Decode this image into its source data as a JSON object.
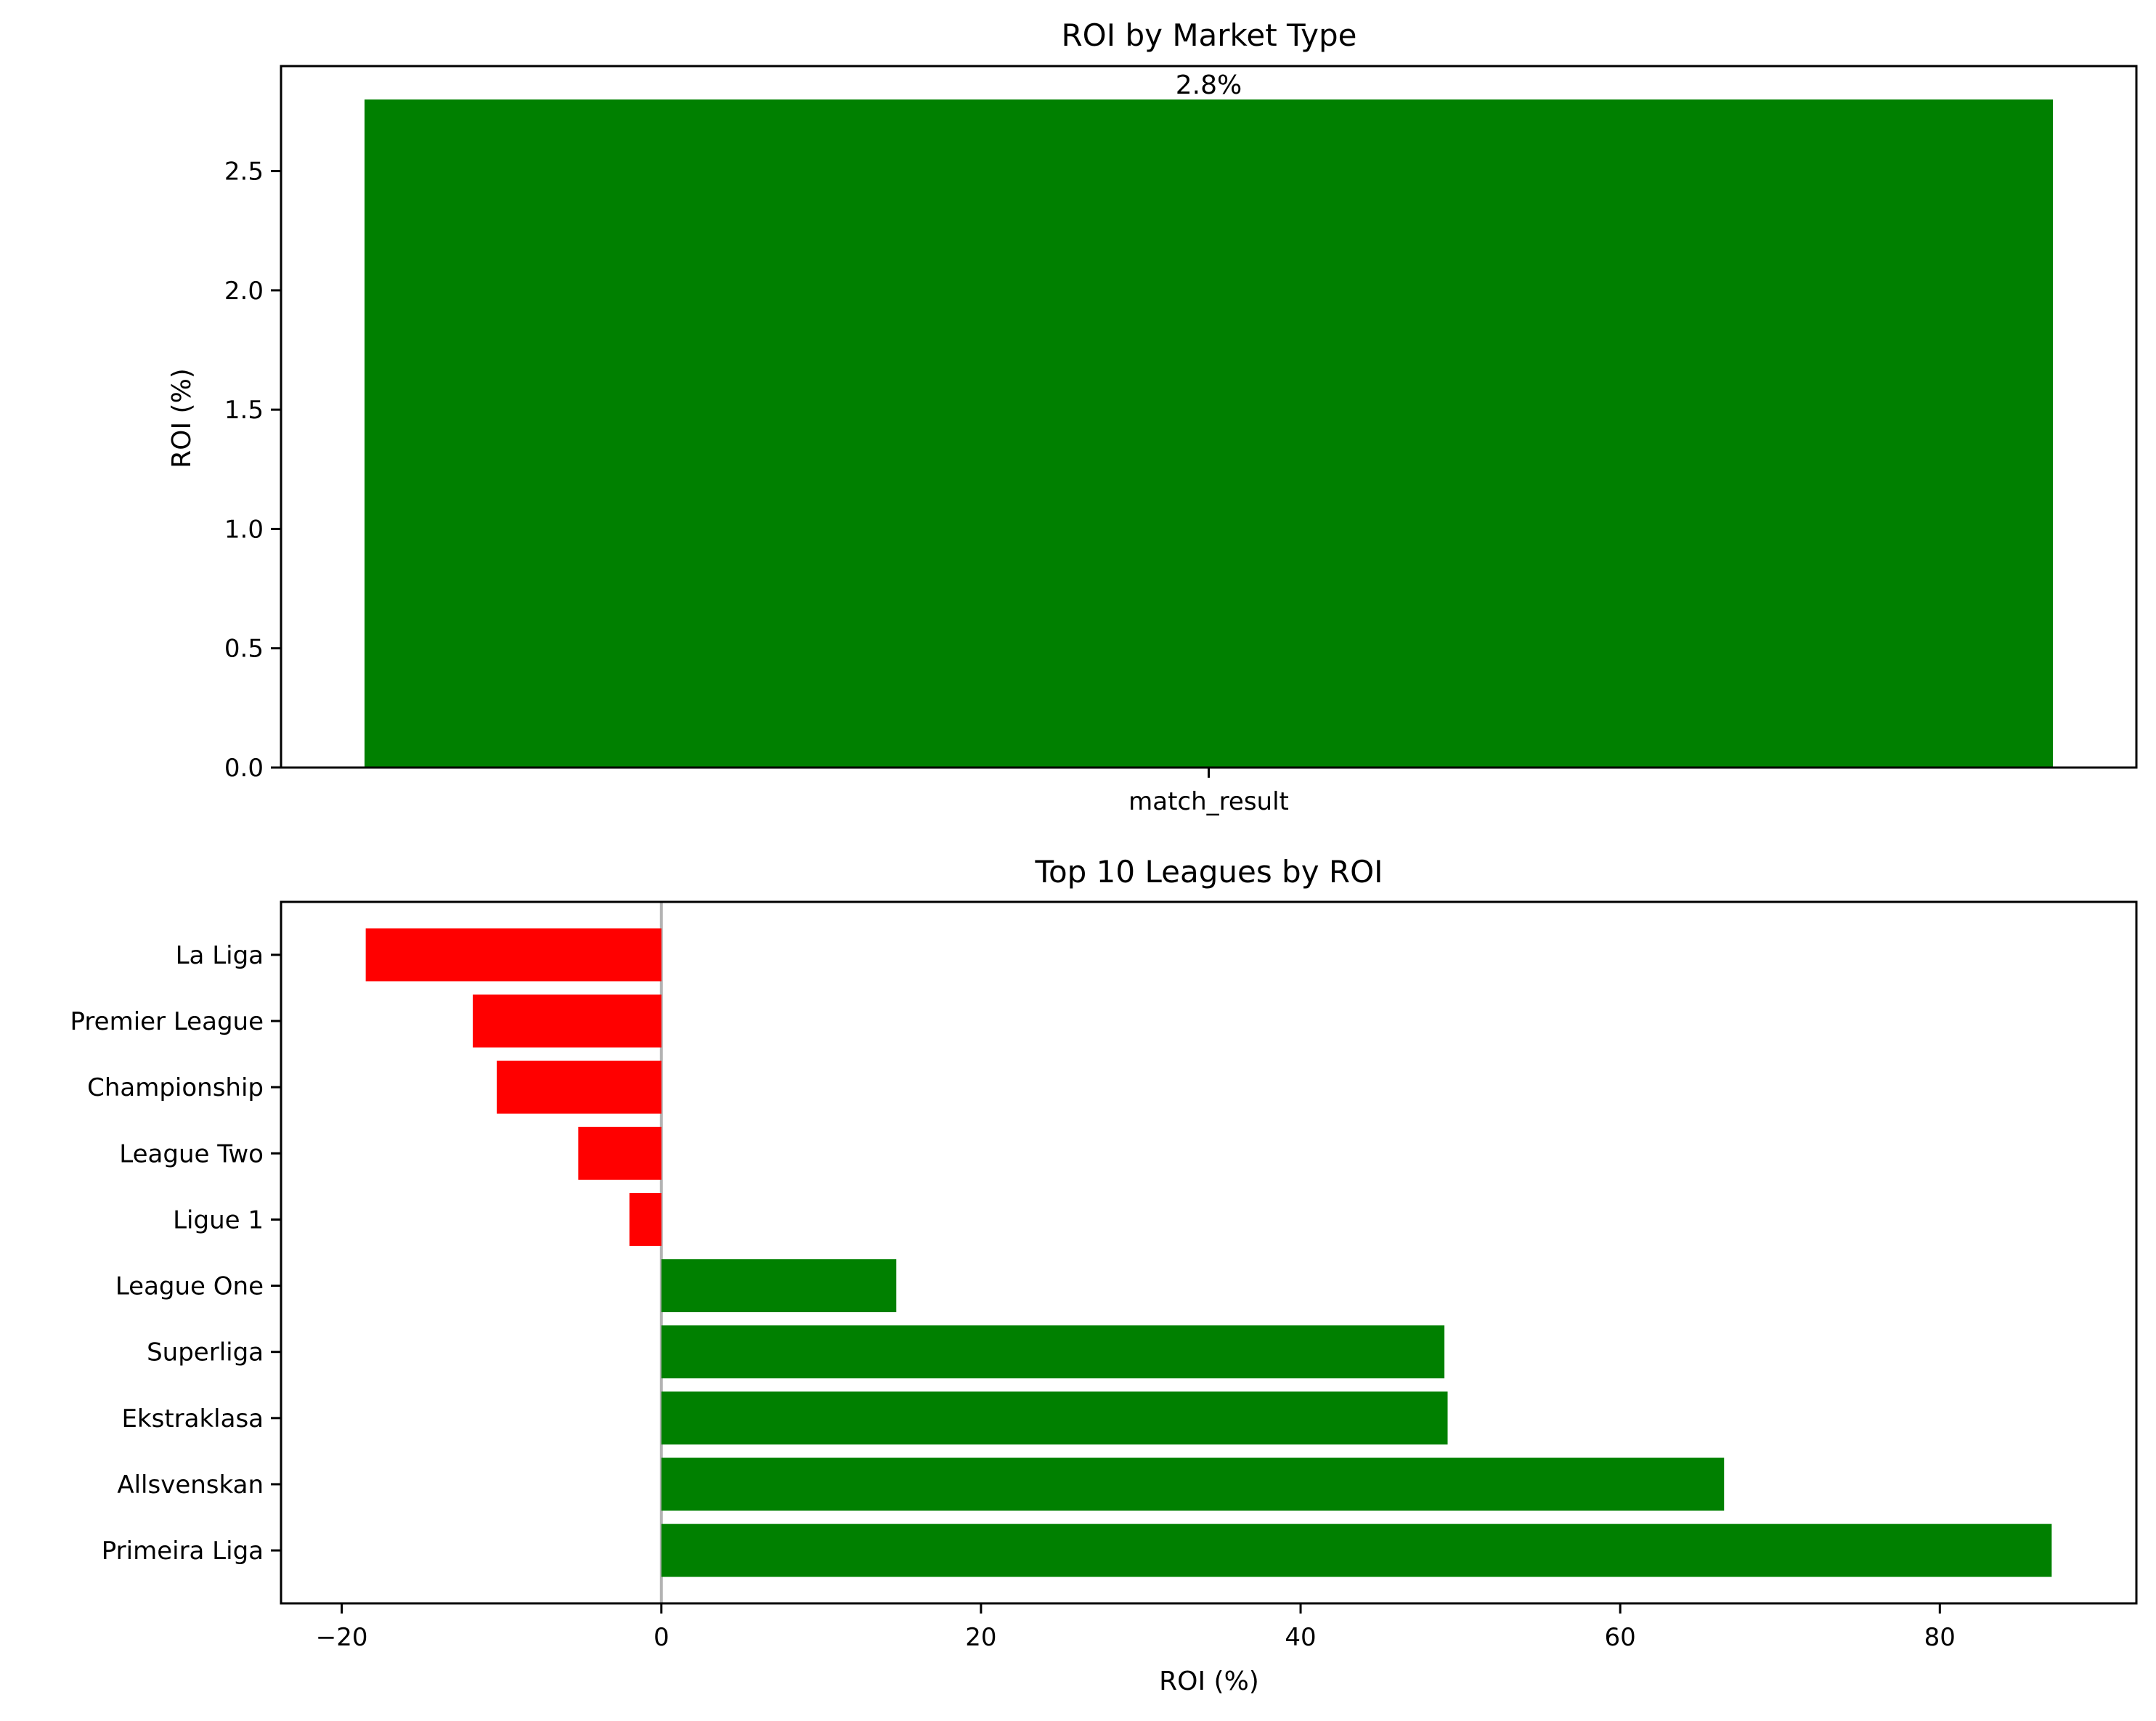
{
  "colors": {
    "positive": "#008000",
    "negative": "#ff0000",
    "zero_line": "#b3b3b3",
    "axes": "#000000",
    "background": "#ffffff"
  },
  "chart_data": [
    {
      "type": "bar",
      "title": "ROI by Market Type",
      "xlabel": "",
      "ylabel": "ROI (%)",
      "categories": [
        "match_result"
      ],
      "values": [
        2.8
      ],
      "value_labels": [
        "2.8%"
      ],
      "yticks": [
        0.0,
        0.5,
        1.0,
        1.5,
        2.0,
        2.5
      ],
      "ytick_labels": [
        "0.0",
        "0.5",
        "1.0",
        "1.5",
        "2.0",
        "2.5"
      ],
      "ylim": [
        0,
        2.94
      ],
      "grid": false,
      "legend": "none"
    },
    {
      "type": "bar",
      "orientation": "horizontal",
      "title": "Top 10 Leagues by ROI",
      "xlabel": "ROI (%)",
      "ylabel": "",
      "categories": [
        "La Liga",
        "Premier League",
        "Championship",
        "League Two",
        "Ligue 1",
        "League One",
        "Superliga",
        "Ekstraklasa",
        "Allsvenskan",
        "Primeira Liga"
      ],
      "values": [
        -18.5,
        -11.8,
        -10.3,
        -5.2,
        -2.0,
        14.7,
        49.0,
        49.2,
        66.5,
        87.0
      ],
      "xticks": [
        -20,
        0,
        20,
        40,
        60,
        80
      ],
      "xtick_labels": [
        "−20",
        "0",
        "20",
        "40",
        "60",
        "80"
      ],
      "xlim": [
        -23.8,
        92.3
      ],
      "zero_line": true,
      "grid": false,
      "legend": "none"
    }
  ]
}
